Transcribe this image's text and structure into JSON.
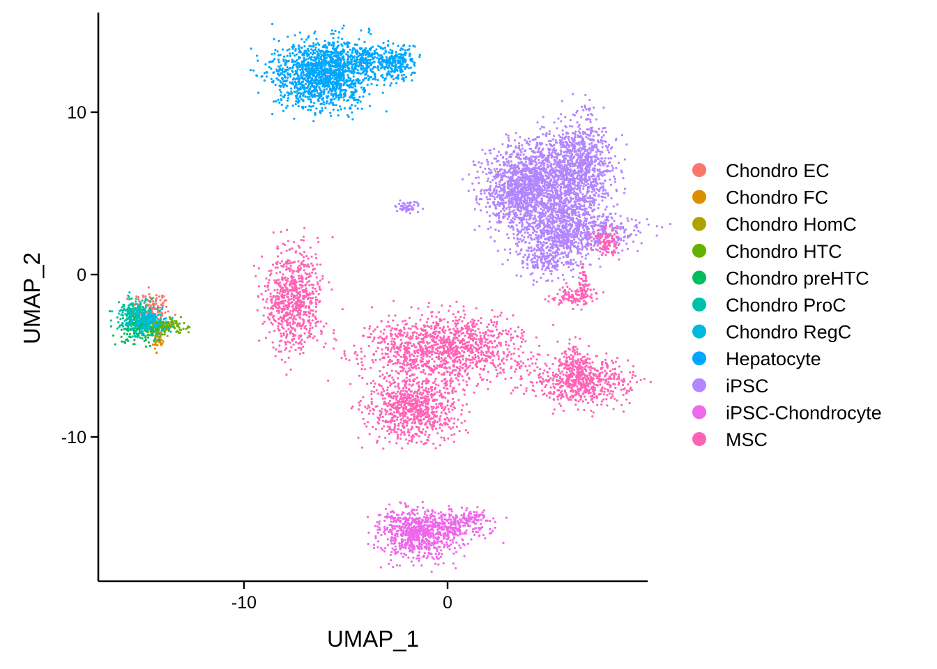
{
  "chart_data": {
    "type": "scatter",
    "title": "",
    "xlabel": "UMAP_1",
    "ylabel": "UMAP_2",
    "xlim": [
      -17,
      10
    ],
    "ylim": [
      -18.5,
      16.5
    ],
    "x_ticks": [
      {
        "value": -10,
        "label": "-10"
      },
      {
        "value": 0,
        "label": "0"
      }
    ],
    "y_ticks": [
      {
        "value": 10,
        "label": "10"
      },
      {
        "value": 0,
        "label": "0"
      },
      {
        "value": -10,
        "label": "-10"
      }
    ],
    "grid": false,
    "legend_position": "right",
    "series": [
      {
        "name": "Chondro EC",
        "color": "#F8766D",
        "clusters": [
          {
            "cx": -14.6,
            "cy": -2.1,
            "rx": 0.5,
            "ry": 0.6,
            "n": 140
          }
        ]
      },
      {
        "name": "Chondro FC",
        "color": "#DB8E00",
        "clusters": [
          {
            "cx": -14.2,
            "cy": -4.0,
            "rx": 0.15,
            "ry": 0.45,
            "n": 40
          }
        ]
      },
      {
        "name": "Chondro HomC",
        "color": "#AEA200",
        "clusters": [
          {
            "cx": -14.3,
            "cy": -3.2,
            "rx": 0.35,
            "ry": 0.3,
            "n": 70
          }
        ]
      },
      {
        "name": "Chondro HTC",
        "color": "#64B200",
        "clusters": [
          {
            "cx": -13.8,
            "cy": -3.2,
            "rx": 0.5,
            "ry": 0.25,
            "n": 110
          }
        ]
      },
      {
        "name": "Chondro preHTC",
        "color": "#00BD5C",
        "clusters": [
          {
            "cx": -15.2,
            "cy": -3.1,
            "rx": 0.55,
            "ry": 0.65,
            "n": 220
          }
        ]
      },
      {
        "name": "Chondro ProC",
        "color": "#00C1A7",
        "clusters": [
          {
            "cx": -15.4,
            "cy": -2.5,
            "rx": 0.45,
            "ry": 0.6,
            "n": 160
          }
        ]
      },
      {
        "name": "Chondro RegC",
        "color": "#00BADE",
        "clusters": [
          {
            "cx": -14.7,
            "cy": -2.9,
            "rx": 0.55,
            "ry": 0.45,
            "n": 150
          }
        ]
      },
      {
        "name": "Hepatocyte",
        "color": "#00A6FF",
        "clusters": [
          {
            "cx": -6.1,
            "cy": 12.4,
            "rx": 1.4,
            "ry": 1.2,
            "n": 1400
          },
          {
            "cx": -4.0,
            "cy": 13.2,
            "rx": 1.3,
            "ry": 0.5,
            "n": 250
          },
          {
            "cx": -2.5,
            "cy": 13.0,
            "rx": 0.5,
            "ry": 0.6,
            "n": 180
          }
        ]
      },
      {
        "name": "iPSC",
        "color": "#B385FF",
        "clusters": [
          {
            "cx": 3.5,
            "cy": 5.0,
            "rx": 1.0,
            "ry": 1.1,
            "n": 700
          },
          {
            "cx": 4.8,
            "cy": 6.5,
            "rx": 1.6,
            "ry": 1.2,
            "n": 900
          },
          {
            "cx": 6.6,
            "cy": 7.0,
            "rx": 0.8,
            "ry": 1.7,
            "n": 600
          },
          {
            "cx": 5.5,
            "cy": 4.0,
            "rx": 1.3,
            "ry": 1.2,
            "n": 700
          },
          {
            "cx": 6.5,
            "cy": 2.5,
            "rx": 1.8,
            "ry": 0.6,
            "n": 450
          },
          {
            "cx": 5.0,
            "cy": 1.2,
            "rx": 1.0,
            "ry": 0.8,
            "n": 300
          },
          {
            "cx": -1.9,
            "cy": 4.2,
            "rx": 0.3,
            "ry": 0.2,
            "n": 50
          }
        ]
      },
      {
        "name": "iPSC-Chondrocyte",
        "color": "#EF67EB",
        "clusters": [
          {
            "cx": -1.6,
            "cy": -16.0,
            "rx": 1.0,
            "ry": 0.9,
            "n": 650
          },
          {
            "cx": 0.1,
            "cy": -15.6,
            "rx": 1.1,
            "ry": 0.45,
            "n": 250
          },
          {
            "cx": 1.1,
            "cy": -14.9,
            "rx": 0.6,
            "ry": 0.3,
            "n": 80
          }
        ]
      },
      {
        "name": "MSC",
        "color": "#FF63B6",
        "clusters": [
          {
            "cx": -7.6,
            "cy": -1.6,
            "rx": 0.8,
            "ry": 1.8,
            "n": 700
          },
          {
            "cx": -0.2,
            "cy": -4.6,
            "rx": 2.3,
            "ry": 1.2,
            "n": 1200
          },
          {
            "cx": -1.7,
            "cy": -8.2,
            "rx": 1.2,
            "ry": 1.2,
            "n": 800
          },
          {
            "cx": 6.6,
            "cy": -6.7,
            "rx": 1.4,
            "ry": 0.8,
            "n": 550
          },
          {
            "cx": 6.2,
            "cy": -5.4,
            "rx": 0.4,
            "ry": 0.8,
            "n": 120
          },
          {
            "cx": 6.2,
            "cy": -1.4,
            "rx": 0.6,
            "ry": 0.35,
            "n": 110
          },
          {
            "cx": 6.7,
            "cy": -0.5,
            "rx": 0.15,
            "ry": 0.6,
            "n": 50
          },
          {
            "cx": 7.8,
            "cy": 2.0,
            "rx": 0.4,
            "ry": 0.5,
            "n": 100
          }
        ]
      }
    ]
  }
}
